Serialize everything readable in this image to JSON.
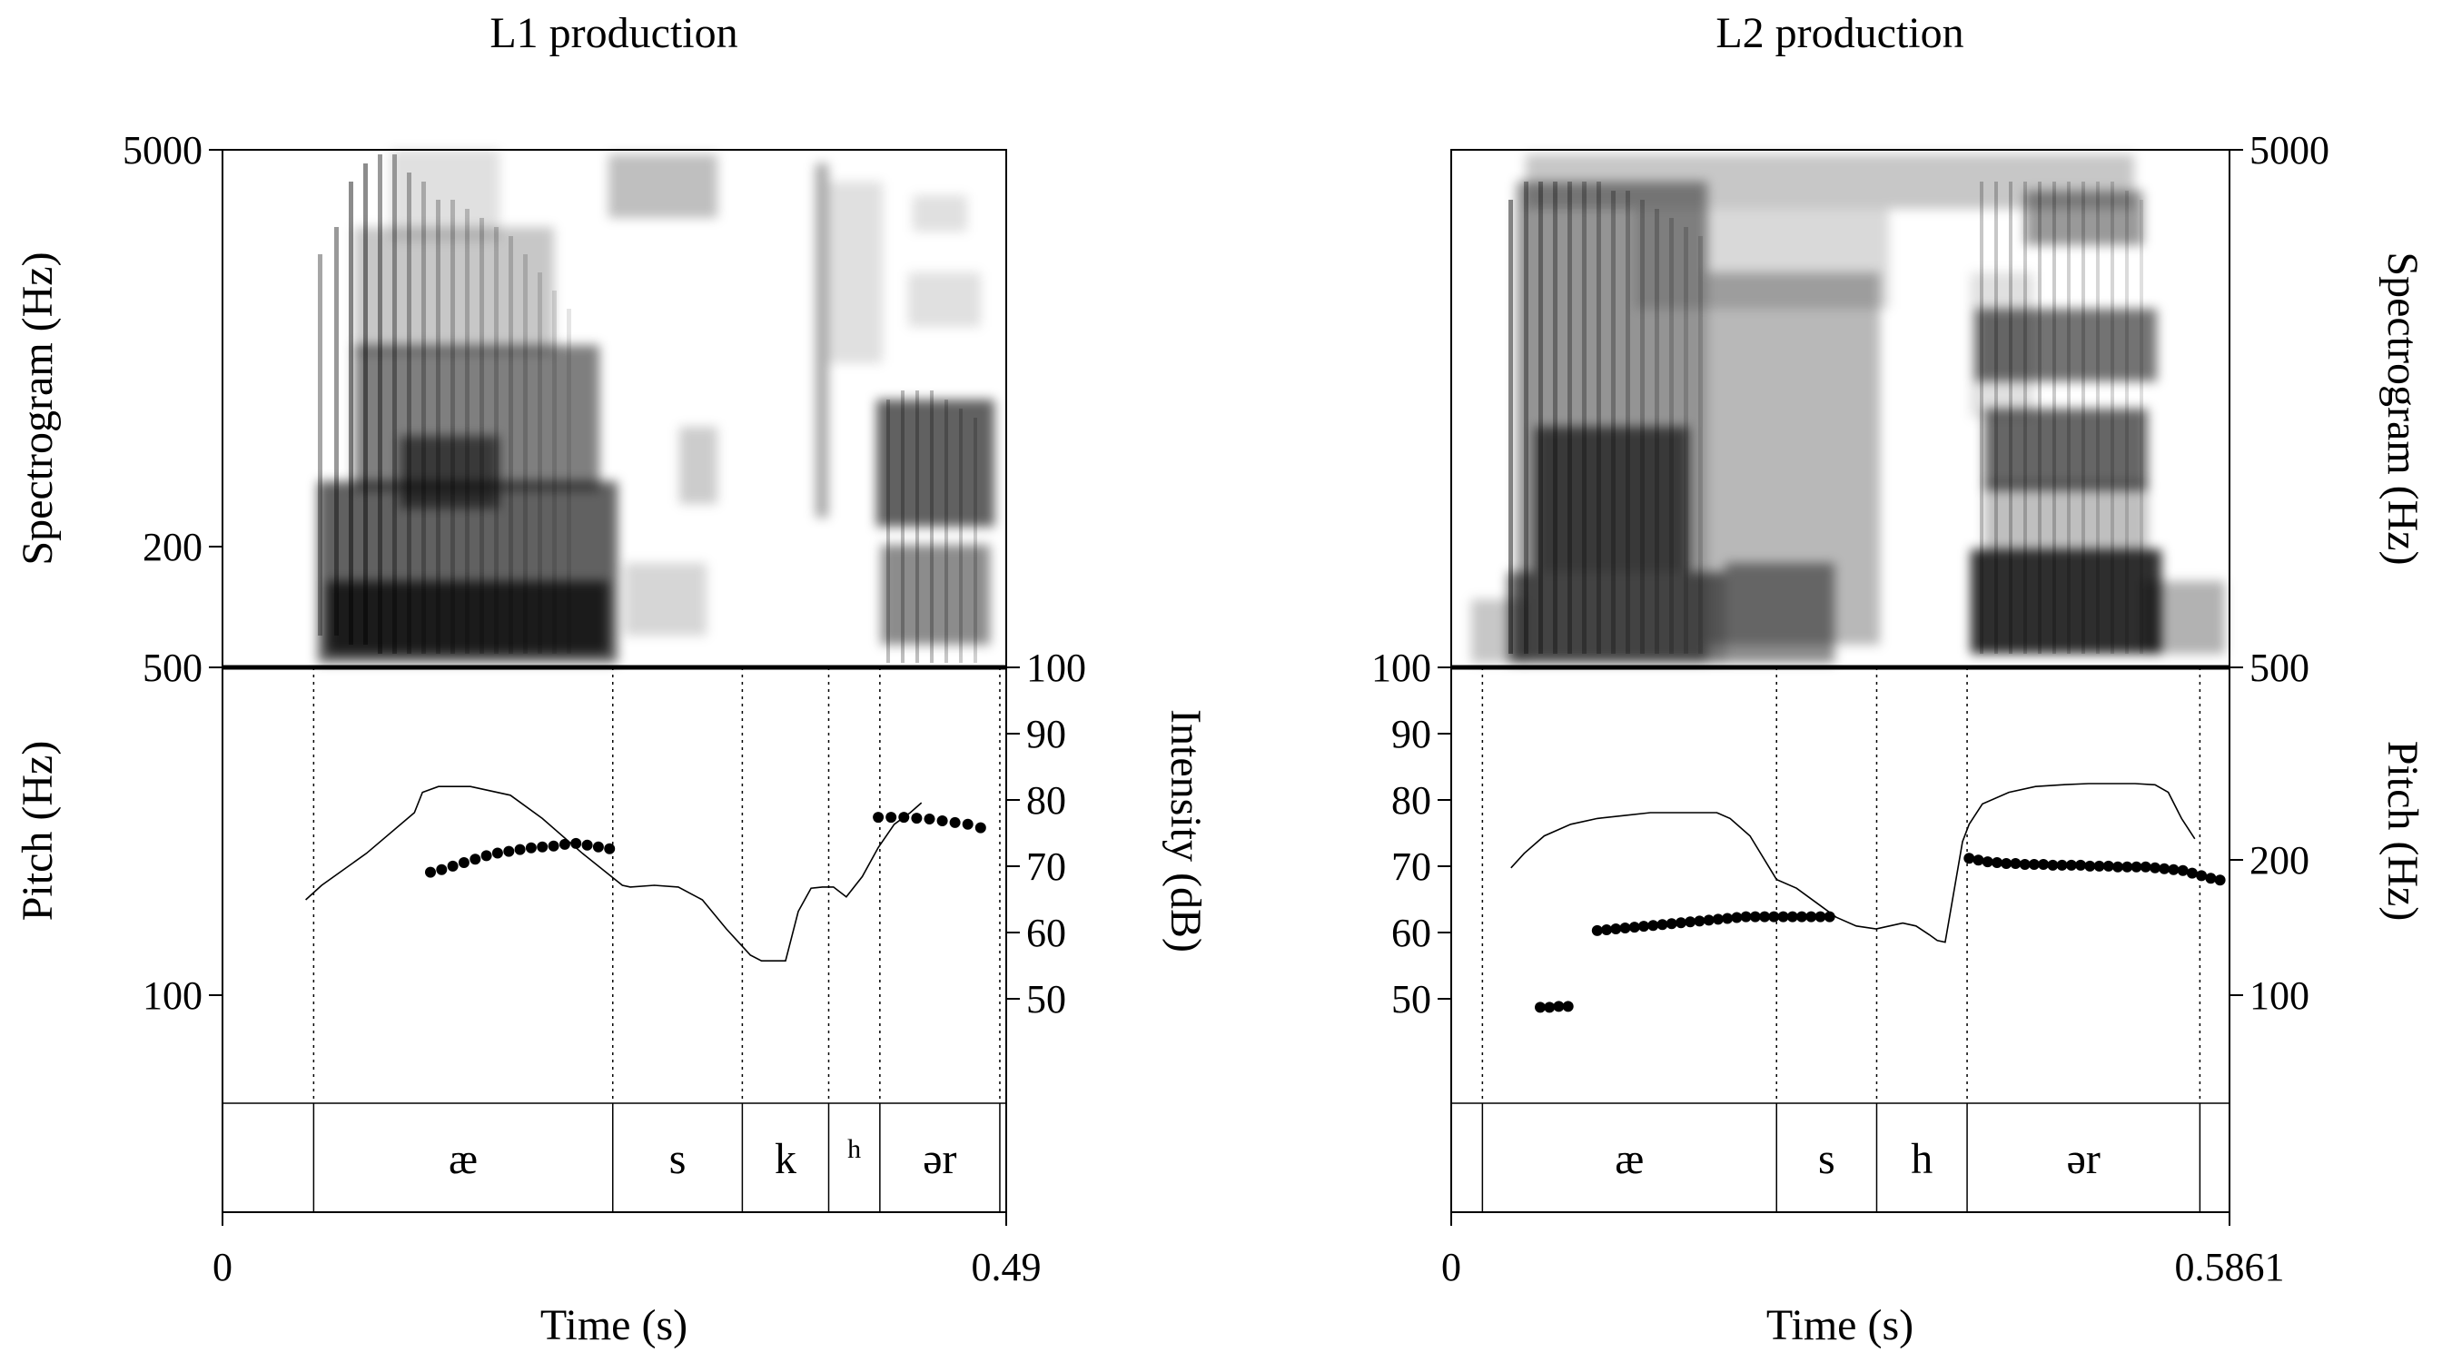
{
  "chart_data": [
    {
      "type": "line",
      "title": "L1 production",
      "xlabel": "Time (s)",
      "xlim": [
        0,
        0.49
      ],
      "x_ticks": [
        "0",
        "0.49"
      ],
      "spectrogram": {
        "ylabel": "Spectrogram (Hz)",
        "ylim": [
          500,
          5000
        ],
        "ticks": [
          "5000",
          "500"
        ]
      },
      "pitch_axis": {
        "ylabel": "Pitch (Hz)",
        "ylim": [
          0,
          500
        ],
        "ticks": [
          "500",
          "200",
          "100"
        ]
      },
      "intensity_axis": {
        "ylabel": "Intensity (dB)",
        "ylim": [
          25,
          100
        ],
        "ticks": [
          "100",
          "90",
          "80",
          "70",
          "60",
          "50"
        ]
      },
      "segments": [
        {
          "label": "",
          "start": 0.0,
          "end": 0.057
        },
        {
          "label": "æ",
          "start": 0.057,
          "end": 0.244
        },
        {
          "label": "s",
          "start": 0.244,
          "end": 0.325
        },
        {
          "label": "k",
          "start": 0.325,
          "end": 0.379
        },
        {
          "label": "h",
          "start": 0.379,
          "end": 0.411
        },
        {
          "label": "ər",
          "start": 0.411,
          "end": 0.486
        },
        {
          "label": "",
          "start": 0.486,
          "end": 0.49
        }
      ],
      "series": [
        {
          "kind": "pitch",
          "style": "dots",
          "x": [
            0.13,
            0.137,
            0.144,
            0.151,
            0.158,
            0.165,
            0.172,
            0.179,
            0.186,
            0.193,
            0.2,
            0.207,
            0.214,
            0.221,
            0.228,
            0.235,
            0.242
          ],
          "y": [
            265,
            268,
            272,
            276,
            280,
            284,
            287,
            289,
            291,
            293,
            294,
            295,
            297,
            298,
            296,
            294,
            292
          ]
        },
        {
          "kind": "pitch",
          "style": "dots",
          "x": [
            0.41,
            0.418,
            0.426,
            0.434,
            0.442,
            0.45,
            0.458,
            0.466,
            0.474
          ],
          "y": [
            328,
            328,
            328,
            327,
            326,
            324,
            322,
            320,
            316
          ]
        },
        {
          "kind": "intensity",
          "style": "line",
          "x": [
            0.052,
            0.062,
            0.09,
            0.12,
            0.125,
            0.135,
            0.155,
            0.18,
            0.2,
            0.225,
            0.25,
            0.255,
            0.27,
            0.285,
            0.3,
            0.315,
            0.33,
            0.337,
            0.345,
            0.352,
            0.36,
            0.368,
            0.375,
            0.382,
            0.39,
            0.4,
            0.41,
            0.42,
            0.43,
            0.437
          ],
          "y": [
            60,
            62.5,
            68,
            75,
            78.5,
            79.5,
            79.5,
            78,
            74,
            68,
            62.5,
            62.2,
            62.5,
            62.2,
            60,
            55,
            50.5,
            49.5,
            49.5,
            49.5,
            58,
            62,
            62.2,
            62.2,
            60.5,
            64,
            69,
            73,
            75,
            76.7
          ]
        }
      ]
    },
    {
      "type": "line",
      "title": "L2 production",
      "xlabel": "Time (s)",
      "xlim": [
        0,
        0.5861
      ],
      "x_ticks": [
        "0",
        "0.5861"
      ],
      "spectrogram": {
        "ylabel": "Spectrogram (Hz)",
        "ylim": [
          500,
          5000
        ],
        "ticks": [
          "5000",
          "500"
        ]
      },
      "pitch_axis": {
        "ylabel": "Pitch (Hz)",
        "ylim": [
          0,
          500
        ],
        "ticks": [
          "500",
          "200",
          "100"
        ]
      },
      "intensity_axis": {
        "ylabel": "",
        "ylim": [
          25,
          100
        ],
        "ticks": [
          "100",
          "90",
          "80",
          "70",
          "60",
          "50"
        ]
      },
      "segments": [
        {
          "label": "",
          "start": 0.0,
          "end": 0.0235
        },
        {
          "label": "æ",
          "start": 0.0235,
          "end": 0.245
        },
        {
          "label": "s",
          "start": 0.245,
          "end": 0.3204
        },
        {
          "label": "h",
          "start": 0.3204,
          "end": 0.3885
        },
        {
          "label": "ər",
          "start": 0.3885,
          "end": 0.5638
        },
        {
          "label": "",
          "start": 0.5638,
          "end": 0.5861
        }
      ],
      "series": [
        {
          "kind": "pitch",
          "style": "dots",
          "x": [
            0.067,
            0.074,
            0.081,
            0.088
          ],
          "y": [
            110,
            110,
            111,
            111
          ]
        },
        {
          "kind": "pitch",
          "style": "dots",
          "x": [
            0.11,
            0.117,
            0.124,
            0.131,
            0.138,
            0.145,
            0.152,
            0.159,
            0.166,
            0.173,
            0.18,
            0.187,
            0.194,
            0.201,
            0.208,
            0.215,
            0.222,
            0.229,
            0.236,
            0.243,
            0.25,
            0.257,
            0.264,
            0.271,
            0.278,
            0.285
          ],
          "y": [
            198,
            199,
            200,
            201,
            202,
            203,
            204,
            205,
            206,
            207,
            208,
            209,
            210,
            211,
            212,
            213,
            214,
            214,
            214,
            214,
            214,
            214,
            214,
            214,
            214,
            214
          ]
        },
        {
          "kind": "pitch",
          "style": "dots",
          "x": [
            0.39,
            0.397,
            0.404,
            0.411,
            0.418,
            0.425,
            0.432,
            0.439,
            0.446,
            0.453,
            0.46,
            0.467,
            0.474,
            0.481,
            0.488,
            0.495,
            0.502,
            0.509,
            0.516,
            0.523,
            0.53,
            0.537,
            0.544,
            0.551,
            0.558,
            0.565,
            0.572,
            0.579
          ],
          "y": [
            281,
            279,
            277,
            276,
            275,
            275,
            274,
            274,
            274,
            273,
            273,
            273,
            273,
            272,
            272,
            272,
            271,
            271,
            271,
            271,
            270,
            269,
            268,
            267,
            264,
            261,
            258,
            256
          ]
        },
        {
          "kind": "intensity",
          "style": "line",
          "x": [
            0.045,
            0.055,
            0.07,
            0.09,
            0.11,
            0.13,
            0.15,
            0.17,
            0.19,
            0.2,
            0.21,
            0.225,
            0.245,
            0.26,
            0.275,
            0.29,
            0.305,
            0.32,
            0.33,
            0.34,
            0.35,
            0.36,
            0.366,
            0.372,
            0.385,
            0.39,
            0.4,
            0.42,
            0.44,
            0.46,
            0.48,
            0.5,
            0.515,
            0.53,
            0.54,
            0.55,
            0.56
          ],
          "y": [
            65.5,
            68,
            71,
            73,
            74,
            74.5,
            75,
            75,
            75,
            75,
            74,
            71,
            63.5,
            62,
            59.5,
            57,
            55.5,
            55,
            55.5,
            56,
            55.5,
            54,
            53,
            52.7,
            70,
            73,
            76.5,
            78.5,
            79.5,
            79.8,
            80,
            80,
            80,
            79.8,
            78.5,
            74,
            70.5
          ]
        }
      ]
    }
  ]
}
